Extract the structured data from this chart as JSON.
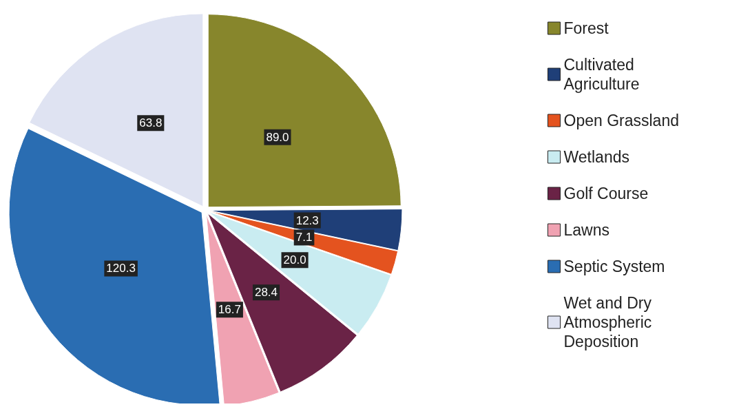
{
  "chart_data": {
    "type": "pie",
    "categories": [
      "Forest",
      "Cultivated Agriculture",
      "Open Grassland",
      "Wetlands",
      "Golf Course",
      "Lawns",
      "Septic System",
      "Wet and Dry Atmospheric Deposition"
    ],
    "values": [
      89.0,
      12.3,
      7.1,
      20.0,
      28.4,
      16.7,
      120.3,
      63.8
    ],
    "colors": [
      "#87862c",
      "#1f3f78",
      "#e4531f",
      "#c9ecf1",
      "#6a2346",
      "#f0a2b2",
      "#2a6db2",
      "#dfe3f2"
    ],
    "value_labels": [
      "89.0",
      "12.3",
      "7.1",
      "20.0",
      "28.4",
      "16.7",
      "120.3",
      "63.8"
    ],
    "legend": "right"
  }
}
